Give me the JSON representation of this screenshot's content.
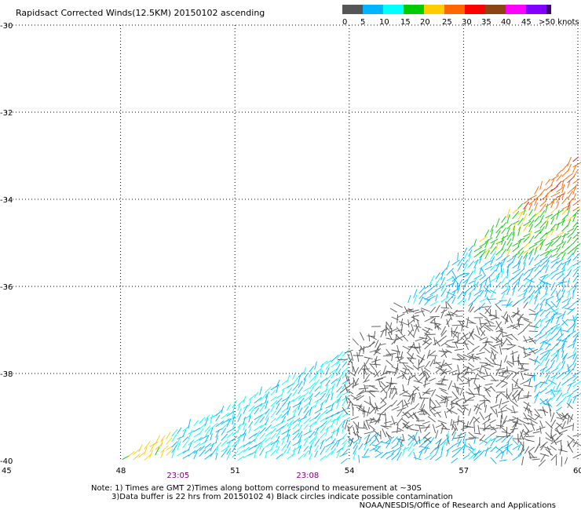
{
  "title": "Rapidsact Corrected Winds(12.5KM) 20150102 ascending",
  "legend": {
    "labels": [
      "0",
      "5",
      "10",
      "15",
      "20",
      "25",
      "30",
      "35",
      "40",
      "45",
      ">50 knots"
    ],
    "colors": [
      "#555555",
      "#00b4ff",
      "#00ffff",
      "#00cc00",
      "#ffcc00",
      "#ff6600",
      "#ff0000",
      "#8b4513",
      "#ff00ff",
      "#8000ff",
      "#400080"
    ]
  },
  "chart_data": {
    "type": "scatter",
    "title": "Rapidsact Corrected Winds(12.5KM) 20150102 ascending",
    "xlim": [
      45,
      60
    ],
    "ylim": [
      -40,
      -30
    ],
    "x_ticks": [
      "45",
      "48",
      "51",
      "54",
      "57",
      "60"
    ],
    "y_ticks": [
      "-30",
      "-32",
      "-34",
      "-36",
      "-38",
      "-40"
    ],
    "grid": true,
    "swath_corners": [
      [
        47.9,
        -40
      ],
      [
        54,
        -37.5
      ],
      [
        60,
        -33
      ]
    ],
    "wind_speed_knots_by_region": [
      {
        "region": "southwest corner",
        "knots": 22
      },
      {
        "region": "west swath",
        "knots": 10
      },
      {
        "region": "central",
        "knots": 8
      },
      {
        "region": "central-east",
        "knots": 2
      },
      {
        "region": "northeast",
        "knots": 18
      },
      {
        "region": "far northeast",
        "knots": 28
      }
    ],
    "times": [
      {
        "label": "23:05",
        "lon": 49.5
      },
      {
        "label": "23:08",
        "lon": 52.9
      }
    ]
  },
  "notes": {
    "line1": "Note: 1) Times are GMT 2)Times along bottom correspond to measurement at ~30S",
    "line2": "3)Data buffer is 22 hrs from 20150102 4) Black circles indicate possible contamination",
    "line3": "NOAA/NESDIS/Office of Research and Applications"
  }
}
